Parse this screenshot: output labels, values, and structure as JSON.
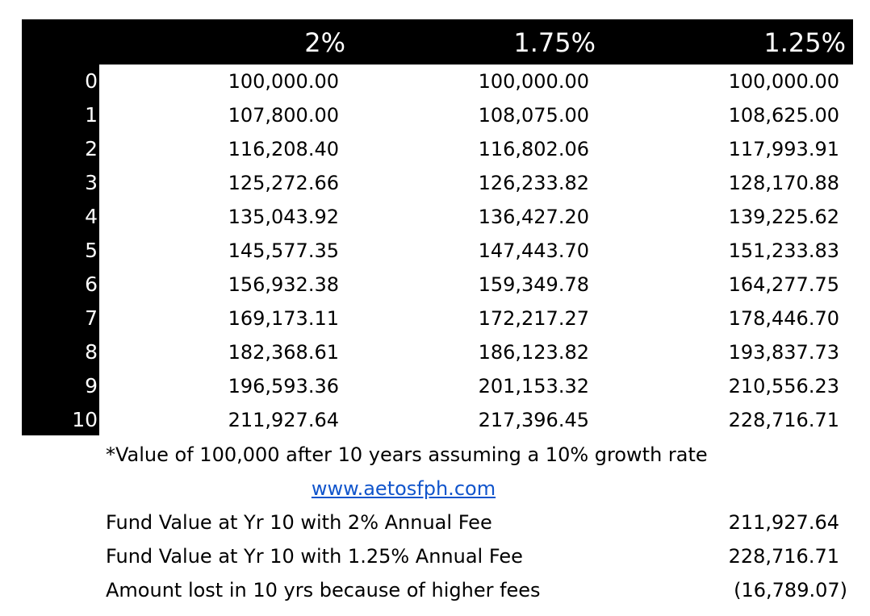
{
  "header": {
    "col1": "2%",
    "col2": "1.75%",
    "col3": "1.25%"
  },
  "rows": [
    {
      "year": "0",
      "v1": "100,000.00",
      "v2": "100,000.00",
      "v3": "100,000.00"
    },
    {
      "year": "1",
      "v1": "107,800.00",
      "v2": "108,075.00",
      "v3": "108,625.00"
    },
    {
      "year": "2",
      "v1": "116,208.40",
      "v2": "116,802.06",
      "v3": "117,993.91"
    },
    {
      "year": "3",
      "v1": "125,272.66",
      "v2": "126,233.82",
      "v3": "128,170.88"
    },
    {
      "year": "4",
      "v1": "135,043.92",
      "v2": "136,427.20",
      "v3": "139,225.62"
    },
    {
      "year": "5",
      "v1": "145,577.35",
      "v2": "147,443.70",
      "v3": "151,233.83"
    },
    {
      "year": "6",
      "v1": "156,932.38",
      "v2": "159,349.78",
      "v3": "164,277.75"
    },
    {
      "year": "7",
      "v1": "169,173.11",
      "v2": "172,217.27",
      "v3": "178,446.70"
    },
    {
      "year": "8",
      "v1": "182,368.61",
      "v2": "186,123.82",
      "v3": "193,837.73"
    },
    {
      "year": "9",
      "v1": "196,593.36",
      "v2": "201,153.32",
      "v3": "210,556.23"
    },
    {
      "year": "10",
      "v1": "211,927.64",
      "v2": "217,396.45",
      "v3": "228,716.71"
    }
  ],
  "note": "*Value of 100,000 after 10 years assuming a 10% growth rate",
  "link": "www.aetosfph.com",
  "summary": [
    {
      "label": "Fund Value at Yr 10 with 2% Annual Fee",
      "value": "211,927.64"
    },
    {
      "label": "Fund Value at Yr 10 with 1.25% Annual Fee",
      "value": "228,716.71"
    },
    {
      "label": "Amount lost in 10 yrs because of higher fees",
      "value": "(16,789.07)"
    }
  ],
  "colors": {
    "header_bg": "#000000",
    "header_text": "#ffffff",
    "link": "#1155cc"
  }
}
